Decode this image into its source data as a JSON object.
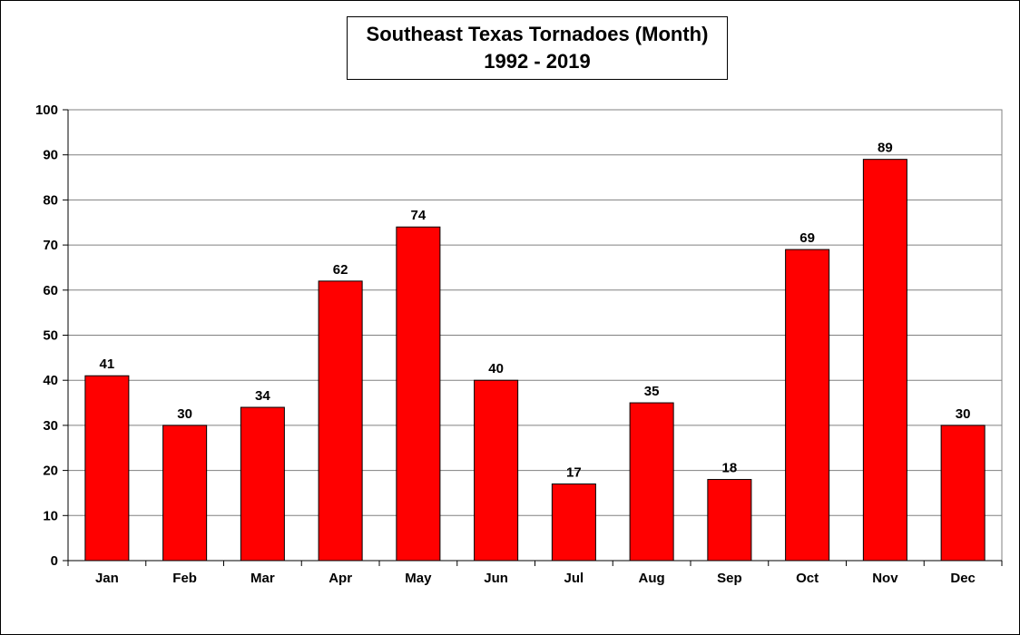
{
  "chart_data": {
    "type": "bar",
    "title": "Southeast Texas Tornadoes (Month)",
    "subtitle": "1992 - 2019",
    "xlabel": "",
    "ylabel": "",
    "categories": [
      "Jan",
      "Feb",
      "Mar",
      "Apr",
      "May",
      "Jun",
      "Jul",
      "Aug",
      "Sep",
      "Oct",
      "Nov",
      "Dec"
    ],
    "values": [
      41,
      30,
      34,
      62,
      74,
      40,
      17,
      35,
      18,
      69,
      89,
      30
    ],
    "ylim": [
      0,
      100
    ],
    "yticks": [
      0,
      10,
      20,
      30,
      40,
      50,
      60,
      70,
      80,
      90,
      100
    ],
    "grid": true,
    "legend": "none",
    "data_labels": true,
    "colors": {
      "bar": "#ff0000",
      "bar_outline": "#000000",
      "grid": "#808080",
      "axis": "#000000"
    }
  }
}
